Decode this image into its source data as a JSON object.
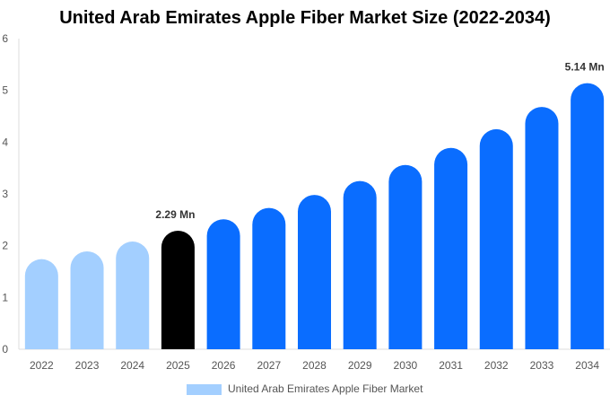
{
  "chart_data": {
    "type": "bar",
    "title": "United Arab Emirates Apple Fiber Market Size (2022-2034)",
    "categories": [
      "2022",
      "2023",
      "2024",
      "2025",
      "2026",
      "2027",
      "2028",
      "2029",
      "2030",
      "2031",
      "2032",
      "2033",
      "2034"
    ],
    "series": [
      {
        "name": "United Arab Emirates Apple Fiber Market",
        "values": [
          1.74,
          1.89,
          2.08,
          2.29,
          2.51,
          2.73,
          2.98,
          3.25,
          3.56,
          3.89,
          4.25,
          4.68,
          5.14
        ]
      }
    ],
    "ylim": [
      0,
      6
    ],
    "yticks": [
      0,
      1,
      2,
      3,
      4,
      5,
      6
    ],
    "data_labels": [
      {
        "index": 3,
        "text": "2.29 Mn"
      },
      {
        "index": 12,
        "text": "5.14 Mn"
      }
    ],
    "colors": {
      "historical": "#a3cfff",
      "base_year": "#000000",
      "forecast": "#0a6dff"
    },
    "legend_position": "bottom",
    "grid": false
  }
}
